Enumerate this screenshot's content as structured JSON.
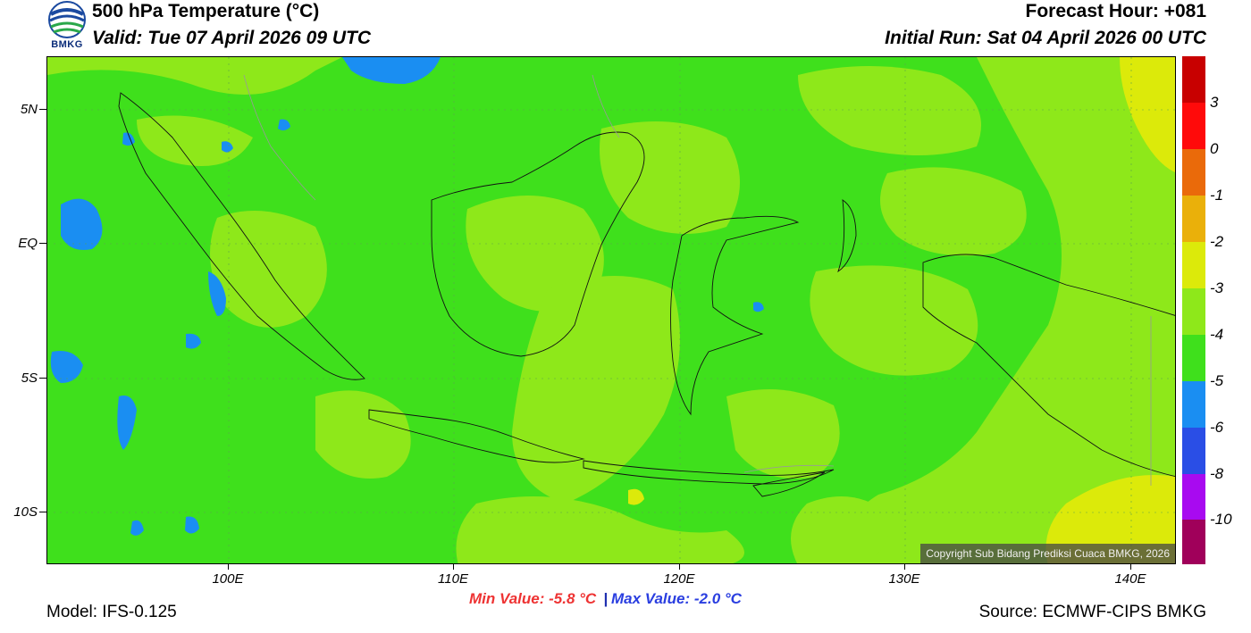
{
  "header": {
    "logo_text": "BMKG",
    "title": "500 hPa Temperature (°C)",
    "valid": "Valid: Tue 07 April 2026 09 UTC",
    "forecast_hour": "Forecast Hour: +081",
    "initial_run": "Initial Run: Sat 04 April 2026 00 UTC"
  },
  "map": {
    "copyright": "Copyright Sub Bidang Prediksi Cuaca BMKG, 2026",
    "lat_labels": [
      "5N",
      "EQ",
      "5S",
      "10S"
    ],
    "lon_labels": [
      "100E",
      "110E",
      "120E",
      "130E",
      "140E"
    ]
  },
  "colorbar": {
    "labels": [
      "3",
      "0",
      "-1",
      "-2",
      "-3",
      "-4",
      "-5",
      "-6",
      "-8",
      "-10"
    ],
    "colors": [
      "#c80000",
      "#ff0a0a",
      "#ea6a0a",
      "#eab00a",
      "#dcea0a",
      "#8ee81a",
      "#3fe01c",
      "#1a8ef2",
      "#2a4ee6",
      "#a80af0",
      "#a0005a"
    ]
  },
  "stats": {
    "min": "Min Value: -5.8 °C",
    "separator": "|",
    "max": "Max Value: -2.0 °C"
  },
  "footer": {
    "model": "Model: IFS-0.125",
    "source": "Source: ECMWF-CIPS BMKG"
  }
}
